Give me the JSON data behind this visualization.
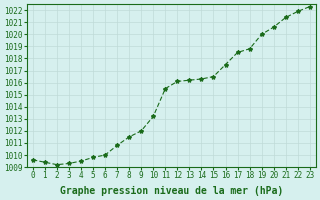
{
  "x": [
    0,
    1,
    2,
    3,
    4,
    5,
    6,
    7,
    8,
    9,
    10,
    11,
    12,
    13,
    14,
    15,
    16,
    17,
    18,
    19,
    20,
    21,
    22,
    23
  ],
  "y": [
    1009.6,
    1009.4,
    1009.2,
    1009.3,
    1009.5,
    1009.8,
    1010.0,
    1010.8,
    1011.5,
    1012.0,
    1013.2,
    1015.5,
    1016.1,
    1016.2,
    1016.3,
    1016.5,
    1017.5,
    1018.5,
    1018.8,
    1020.0,
    1020.6,
    1021.4,
    1021.9,
    1022.3
  ],
  "xlim": [
    -0.5,
    23.5
  ],
  "ylim": [
    1009,
    1022.5
  ],
  "yticks": [
    1009,
    1010,
    1011,
    1012,
    1013,
    1014,
    1015,
    1016,
    1017,
    1018,
    1019,
    1020,
    1021,
    1022
  ],
  "xticks": [
    0,
    1,
    2,
    3,
    4,
    5,
    6,
    7,
    8,
    9,
    10,
    11,
    12,
    13,
    14,
    15,
    16,
    17,
    18,
    19,
    20,
    21,
    22,
    23
  ],
  "xlabel": "Graphe pression niveau de la mer (hPa)",
  "line_color": "#1a6b1a",
  "marker": "*",
  "bg_color": "#d6f0ee",
  "grid_color": "#c0dbd8",
  "tick_label_color": "#1a6b1a",
  "xlabel_color": "#1a6b1a",
  "title_fontsize": 7,
  "tick_fontsize": 5.5
}
